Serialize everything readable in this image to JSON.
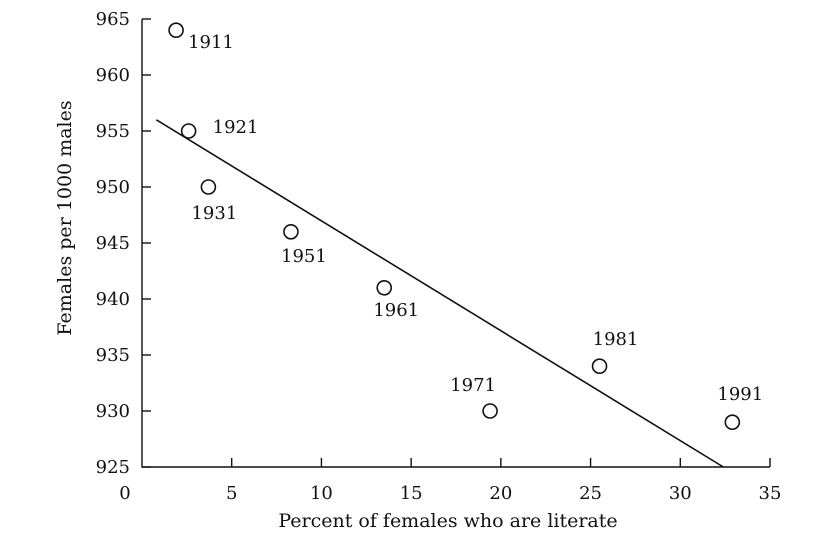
{
  "chart_data": {
    "type": "scatter",
    "title": "",
    "xlabel": "Percent of females who are literate",
    "ylabel": "Females per 1000 males",
    "xlim": [
      0,
      35
    ],
    "ylim": [
      925,
      965
    ],
    "x_ticks": [
      0,
      5,
      10,
      15,
      20,
      25,
      30,
      35
    ],
    "y_ticks": [
      925,
      930,
      935,
      940,
      945,
      950,
      955,
      960,
      965
    ],
    "grid": false,
    "legend": "none",
    "points": [
      {
        "label": "1911",
        "x": 1.9,
        "y": 964
      },
      {
        "label": "1921",
        "x": 2.6,
        "y": 955
      },
      {
        "label": "1931",
        "x": 3.7,
        "y": 950
      },
      {
        "label": "1951",
        "x": 8.3,
        "y": 946
      },
      {
        "label": "1961",
        "x": 13.5,
        "y": 941
      },
      {
        "label": "1971",
        "x": 19.4,
        "y": 930
      },
      {
        "label": "1981",
        "x": 25.5,
        "y": 934
      },
      {
        "label": "1991",
        "x": 32.9,
        "y": 929
      }
    ],
    "trend_line": {
      "x": [
        0.8,
        32.4
      ],
      "y": [
        956,
        925
      ]
    }
  }
}
